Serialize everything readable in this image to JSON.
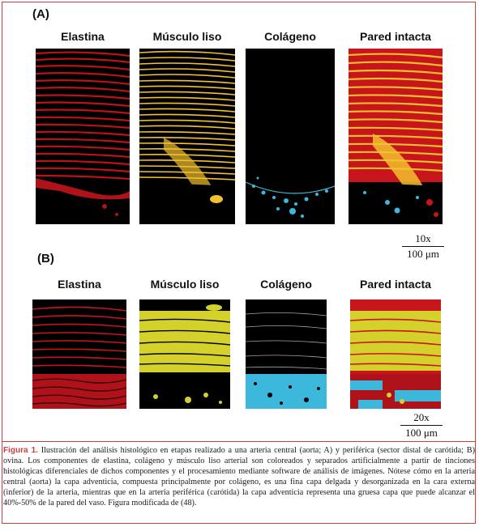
{
  "panels": [
    {
      "letter": "(A)",
      "labels": [
        "Elastina",
        "Músculo liso",
        "Colágeno",
        "Pared intacta"
      ],
      "scale": {
        "magnification": "10x",
        "length": "100 μm"
      }
    },
    {
      "letter": "(B)",
      "labels": [
        "Elastina",
        "Músculo liso",
        "Colágeno",
        "Pared intacta"
      ],
      "scale": {
        "magnification": "20x",
        "length": "100 μm"
      }
    }
  ],
  "colors": {
    "elastin": "#c8141b",
    "smooth_muscle_a": "#f2c12e",
    "smooth_muscle_b": "#d4d12c",
    "collagen": "#3bb8dc",
    "border": "#c9403a"
  },
  "caption": {
    "figure_label": "Figura 1.",
    "text": " Ilustración del análisis histológico en etapas realizado a una arteria central (aorta; A) y periférica (sector distal de carótida; B) ovina. Los componentes de elastina, colágeno y músculo liso arterial son coloreados y separados artificialmente a partir de tinciones histológicas diferenciales de dichos componentes y el procesamiento mediante software de análisis de imágenes. Nótese cómo en la arteria central (aorta) la capa adventicia, compuesta principalmente por colágeno, es una fina capa delgada y desorganizada en la cara externa (inferior) de la arteria, mientras que en la arteria periférica (carótida) la capa adventicia representa una gruesa capa que puede alcanzar el 40%-50% de la pared del vaso. Figura modificada de (48)."
  }
}
